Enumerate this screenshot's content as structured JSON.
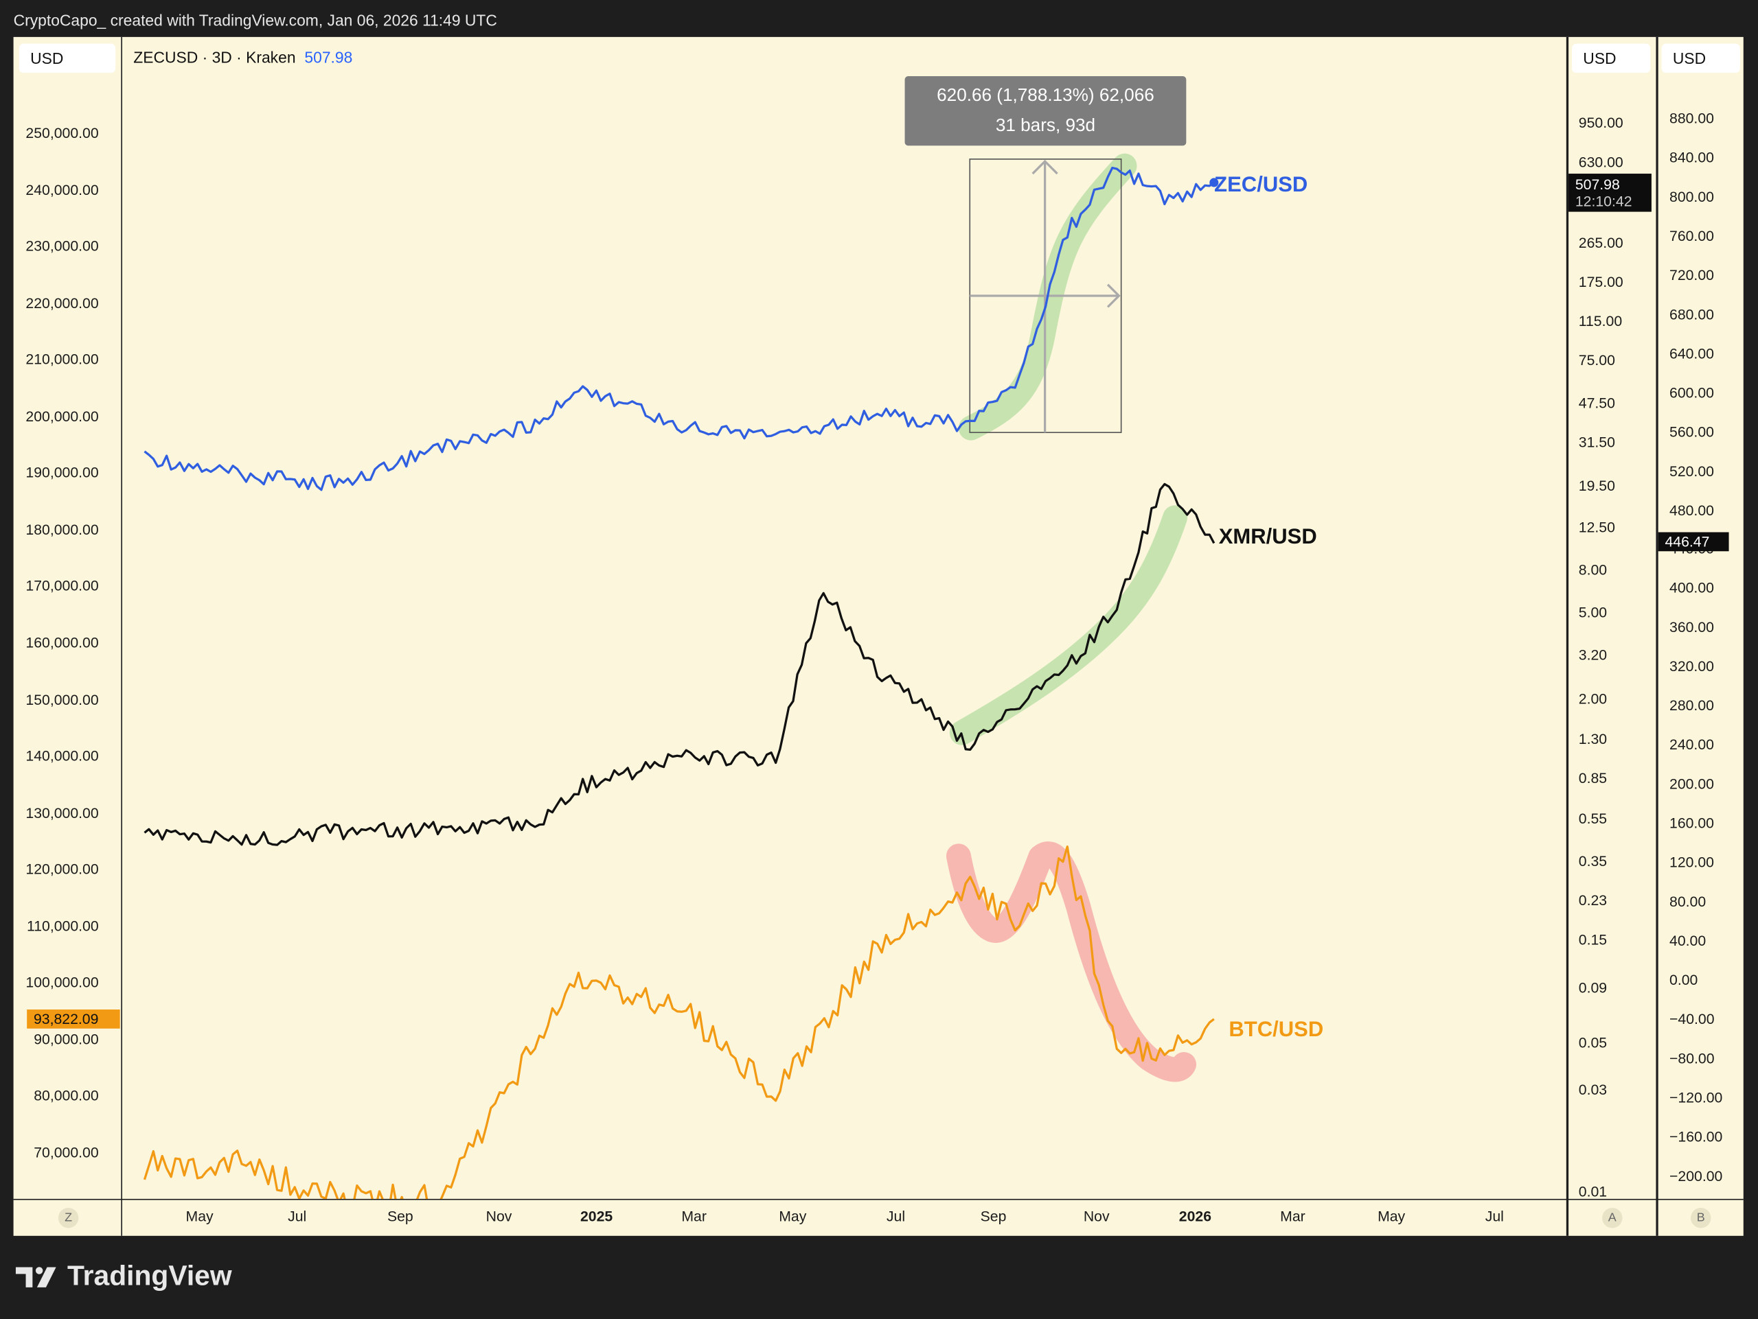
{
  "header": {
    "caption": "CryptoCapo_ created with TradingView.com, Jan 06, 2026 11:49 UTC"
  },
  "symbol": {
    "info": "ZECUSD · 3D · Kraken",
    "last_price": "507.98"
  },
  "units": {
    "left": "USD",
    "right_a": "USD",
    "right_b": "USD"
  },
  "axis_left_ticks": [
    "250,000.00",
    "240,000.00",
    "230,000.00",
    "220,000.00",
    "210,000.00",
    "200,000.00",
    "190,000.00",
    "180,000.00",
    "170,000.00",
    "160,000.00",
    "150,000.00",
    "140,000.00",
    "130,000.00",
    "120,000.00",
    "110,000.00",
    "100,000.00",
    "90,000.00",
    "80,000.00",
    "70,000.00"
  ],
  "axis_right_a_ticks": [
    "950.00",
    "630.00",
    "265.00",
    "175.00",
    "115.00",
    "75.00",
    "47.50",
    "31.50",
    "19.50",
    "12.50",
    "8.00",
    "5.00",
    "3.20",
    "2.00",
    "1.30",
    "0.85",
    "0.55",
    "0.35",
    "0.23",
    "0.15",
    "0.09",
    "0.05",
    "0.03",
    "0.01"
  ],
  "axis_right_b_ticks": [
    "880.00",
    "840.00",
    "800.00",
    "760.00",
    "720.00",
    "680.00",
    "640.00",
    "600.00",
    "560.00",
    "520.00",
    "480.00",
    "440.00",
    "400.00",
    "360.00",
    "320.00",
    "280.00",
    "240.00",
    "200.00",
    "160.00",
    "120.00",
    "80.00",
    "40.00",
    "0.00",
    "−40.00",
    "−80.00",
    "−120.00",
    "−160.00",
    "−200.00"
  ],
  "axis_time_ticks": [
    "May",
    "Jul",
    "Sep",
    "Nov",
    "2025",
    "Mar",
    "May",
    "Jul",
    "Sep",
    "Nov",
    "2026",
    "Mar",
    "May",
    "Jul"
  ],
  "price_tags": {
    "btc": "93,822.09",
    "zec_price": "507.98",
    "zec_countdown": "12:10:42",
    "xmr": "446.47"
  },
  "measure_tooltip": {
    "line1": "620.66 (1,788.13%) 62,066",
    "line2": "31 bars, 93d"
  },
  "series_labels": {
    "zec": "ZEC/USD",
    "xmr": "XMR/USD",
    "btc": "BTC/USD"
  },
  "corner_buttons": {
    "left": "Z",
    "a": "A",
    "b": "B"
  },
  "branding": {
    "logo_text": "TradingView"
  },
  "colors": {
    "zec": "#2f5fe0",
    "xmr": "#111111",
    "btc": "#f29a14",
    "up_highlight": "#b5dca0",
    "down_highlight": "#f5a3a3",
    "background": "#fbf6dc"
  },
  "chart_data": {
    "type": "line",
    "x_range": [
      "2024-03",
      "2026-07"
    ],
    "series": [
      {
        "name": "ZEC/USD",
        "axis": "right_a (log)",
        "x": [
          "2024-03",
          "2024-05",
          "2024-07",
          "2024-09",
          "2024-11",
          "2024-12",
          "2025-02",
          "2025-04",
          "2025-06",
          "2025-08",
          "2025-09",
          "2025-10",
          "2025-11",
          "2025-12",
          "2026-01"
        ],
        "values": [
          27,
          22,
          20,
          30,
          38,
          57,
          38,
          34,
          42,
          38,
          60,
          300,
          630,
          420,
          508
        ]
      },
      {
        "name": "XMR/USD",
        "axis": "right_b",
        "x": [
          "2024-03",
          "2024-05",
          "2024-07",
          "2024-09",
          "2024-11",
          "2024-12",
          "2025-02",
          "2025-04",
          "2025-05",
          "2025-06",
          "2025-08",
          "2025-09",
          "2025-10",
          "2025-11",
          "2025-12",
          "2026-01"
        ],
        "values": [
          150,
          143,
          152,
          154,
          160,
          198,
          228,
          226,
          400,
          320,
          240,
          280,
          320,
          380,
          510,
          446.47
        ]
      },
      {
        "name": "BTC/USD",
        "axis": "left",
        "x": [
          "2024-03",
          "2024-05",
          "2024-07",
          "2024-09",
          "2024-11",
          "2024-12",
          "2025-02",
          "2025-04",
          "2025-06",
          "2025-08",
          "2025-09",
          "2025-10",
          "2025-11",
          "2025-12",
          "2026-01"
        ],
        "values": [
          68000,
          68000,
          62000,
          62000,
          89000,
          101000,
          96000,
          80000,
          106000,
          118000,
          110000,
          123000,
          88000,
          88000,
          93822.09
        ]
      }
    ],
    "measure": {
      "from": "2025-08-24",
      "to": "2025-11-25",
      "change": "620.66",
      "percent": "1,788.13%",
      "ticks": "62,066",
      "bars": 31,
      "days": 93
    }
  }
}
